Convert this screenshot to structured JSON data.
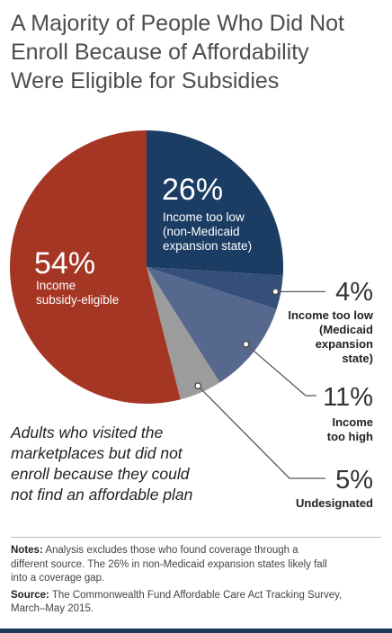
{
  "title_lines": [
    "A Majority of People Who Did Not",
    "Enroll Because of Affordability",
    "Were Eligible for Subsidies"
  ],
  "chart_data": {
    "type": "pie",
    "slices": [
      {
        "value": 26,
        "pct_label": "26%",
        "label_lines": [
          "Income too low",
          "(non-Medicaid",
          "expansion state)"
        ],
        "color": "#1b3c63"
      },
      {
        "value": 4,
        "pct_label": "4%",
        "label_lines": [
          "Income too low",
          "(Medicaid",
          "expansion",
          "state)"
        ],
        "color": "#34507a"
      },
      {
        "value": 11,
        "pct_label": "11%",
        "label_lines": [
          "Income",
          "too high"
        ],
        "color": "#57688f"
      },
      {
        "value": 5,
        "pct_label": "5%",
        "label_lines": [
          "Undesignated"
        ],
        "color": "#9c9c9c"
      },
      {
        "value": 54,
        "pct_label": "54%",
        "label_lines": [
          "Income",
          "subsidy-eligible"
        ],
        "color": "#a63624"
      }
    ]
  },
  "caption_lines": [
    "Adults who visited the",
    "marketplaces but did not",
    "enroll because they could",
    "not find an affordable plan"
  ],
  "notes": {
    "notes_label": "Notes:",
    "notes_lines": [
      " Analysis excludes those who found coverage through a",
      "different source. The 26% in non-Medicaid expansion states likely fall",
      "into a coverage gap."
    ],
    "source_label": "Source:",
    "source_lines": [
      " The Commonwealth Fund Affordable Care Act Tracking Survey,",
      "March–May 2015."
    ]
  },
  "colors": {
    "bottom_bar": "#1a3a5c",
    "leader": "#555555"
  }
}
